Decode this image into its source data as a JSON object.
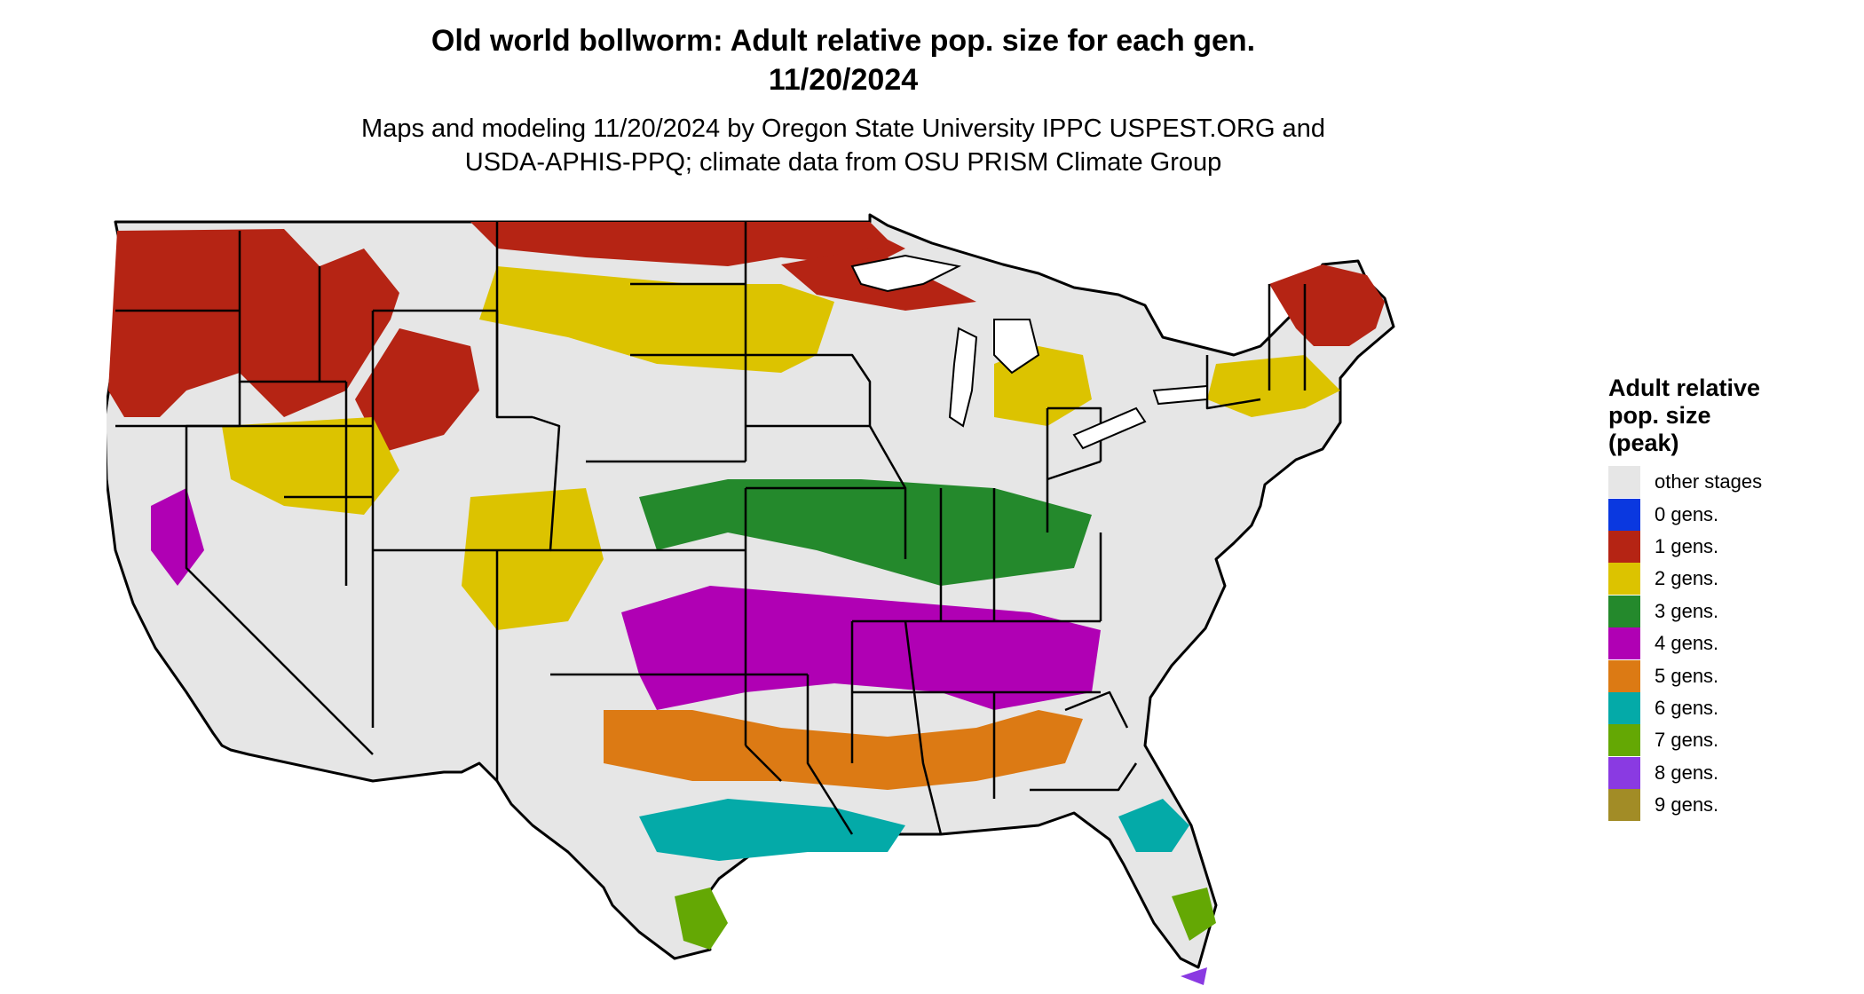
{
  "header": {
    "title_line1": "Old world bollworm: Adult relative pop. size for each gen.",
    "title_line2": "11/20/2024",
    "subtitle_line1": "Maps and modeling 11/20/2024 by Oregon State University IPPC USPEST.ORG and",
    "subtitle_line2": "USDA-APHIS-PPQ; climate data from OSU PRISM Climate Group"
  },
  "legend": {
    "title_line1": "Adult relative",
    "title_line2": "pop. size",
    "title_line3": "(peak)",
    "items": [
      {
        "label": "other stages",
        "color": "#e6e6e6"
      },
      {
        "label": "0 gens.",
        "color": "#0a38e0"
      },
      {
        "label": "1 gens.",
        "color": "#b52414"
      },
      {
        "label": "2 gens.",
        "color": "#dcc300"
      },
      {
        "label": "3 gens.",
        "color": "#24892c"
      },
      {
        "label": "4 gens.",
        "color": "#b000b4"
      },
      {
        "label": "5 gens.",
        "color": "#dc7a14"
      },
      {
        "label": "6 gens.",
        "color": "#04aaa8"
      },
      {
        "label": "7 gens.",
        "color": "#64a804"
      },
      {
        "label": "8 gens.",
        "color": "#8a3ae2"
      },
      {
        "label": "9 gens.",
        "color": "#a28c26"
      }
    ]
  }
}
